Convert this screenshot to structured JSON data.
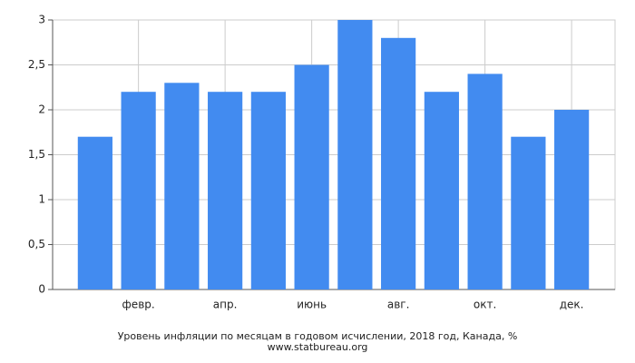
{
  "chart_data": {
    "type": "bar",
    "title": "Уровень инфляции по месяцам в годовом исчислении, 2018 год, Канада, %",
    "subtitle": "www.statbureau.org",
    "categories": [
      null,
      "февр.",
      null,
      "апр.",
      null,
      "июнь",
      null,
      "авг.",
      null,
      "окт.",
      null,
      "дек."
    ],
    "values": [
      1.7,
      2.2,
      2.3,
      2.2,
      2.2,
      2.5,
      3.0,
      2.8,
      2.2,
      2.4,
      1.7,
      2.0
    ],
    "color": "#428bf0",
    "ylim": [
      0,
      3
    ],
    "yticks": [
      0,
      {
        "value": 0.5,
        "label": "0,5"
      },
      1,
      {
        "value": 1.5,
        "label": "1,5"
      },
      2,
      {
        "value": 2.5,
        "label": "2,5"
      },
      3
    ],
    "grid": true
  }
}
